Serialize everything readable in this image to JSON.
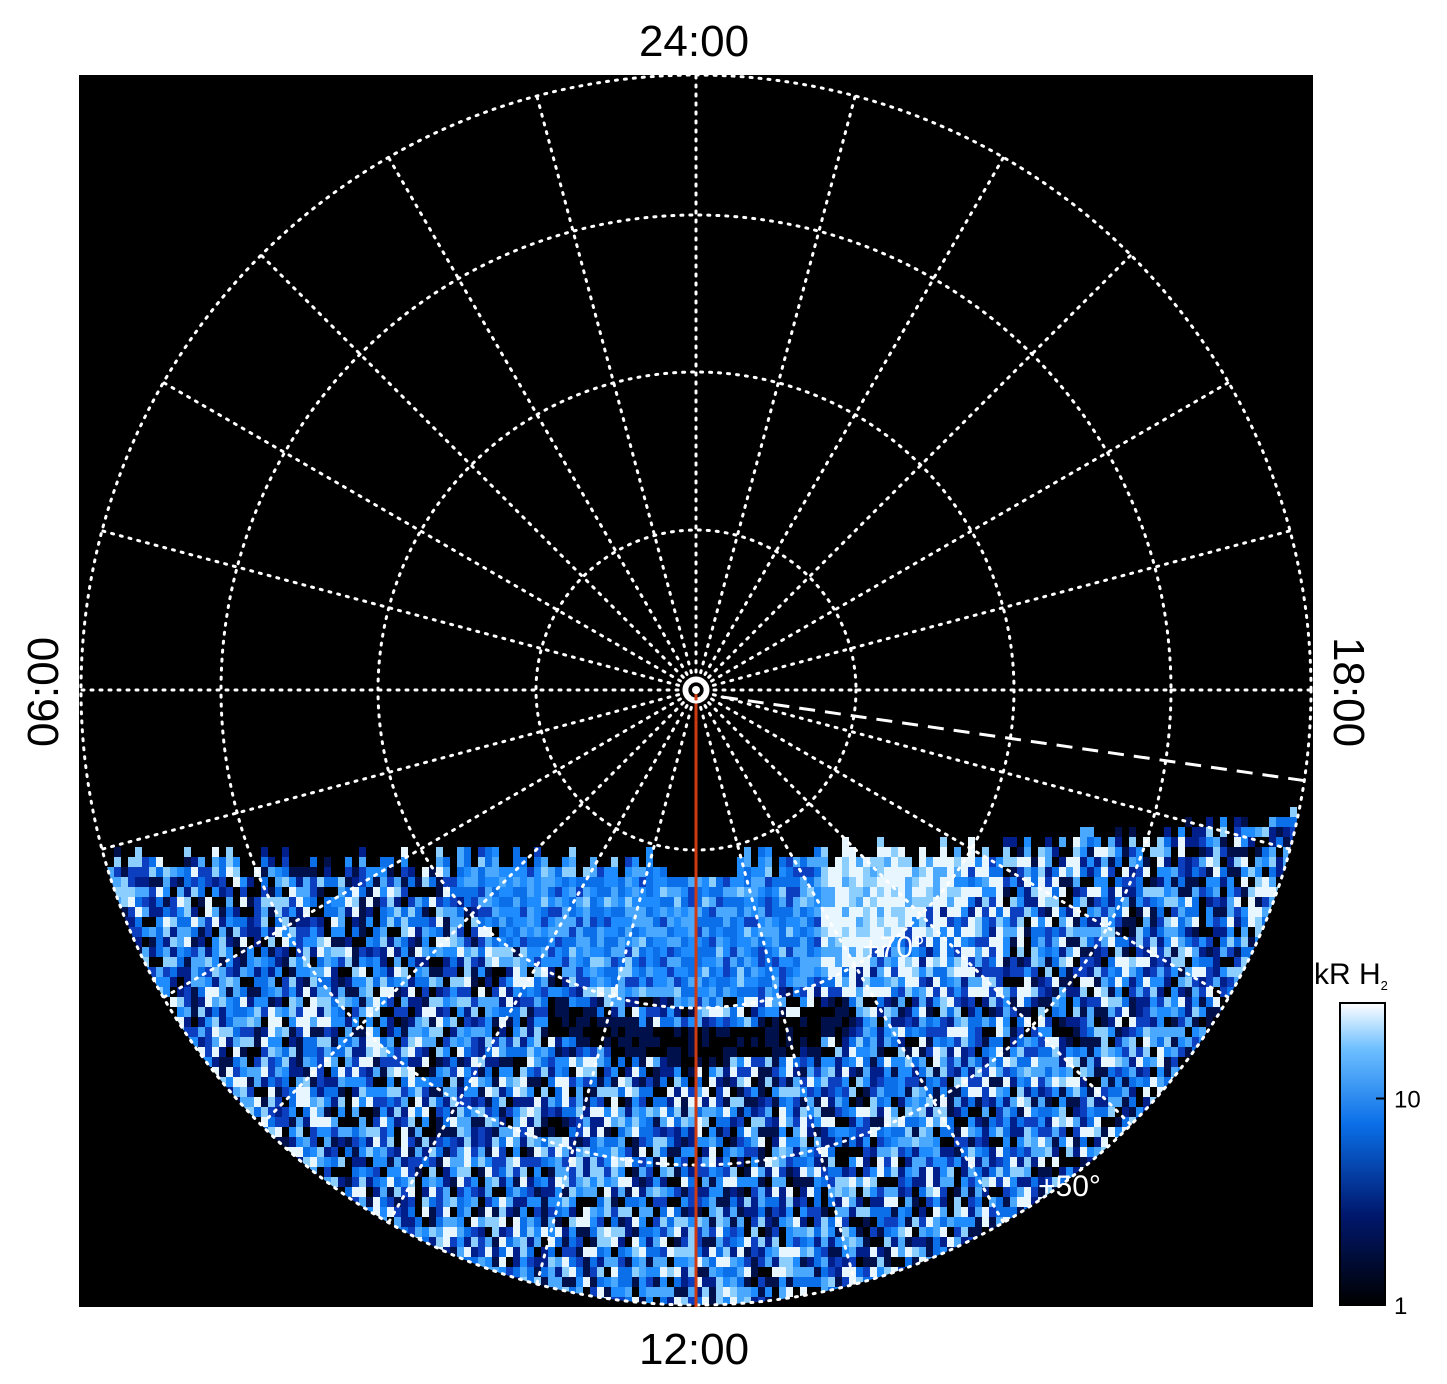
{
  "local_time_labels": {
    "top": "24:00",
    "bottom": "12:00",
    "left": "06:00",
    "right": "18:00"
  },
  "latitude_labels": [
    "+70°",
    "+50°"
  ],
  "colorbar": {
    "label": "kR H",
    "label_subscript": "2",
    "scale": "log",
    "lim": [
      1,
      29
    ],
    "ticks": [
      1,
      10
    ]
  }
}
